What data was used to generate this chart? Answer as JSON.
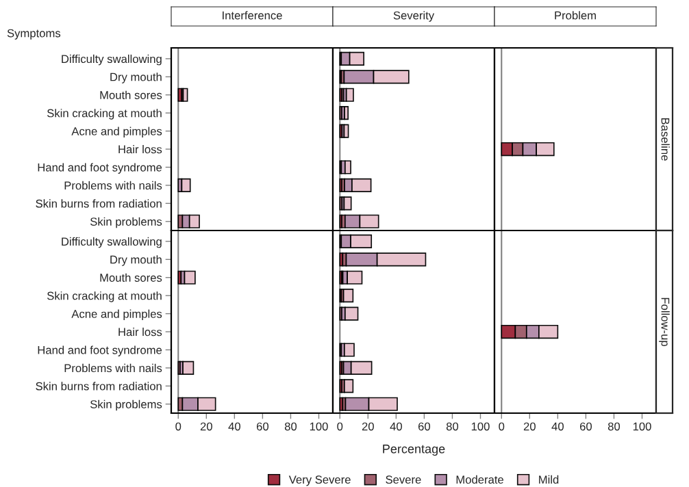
{
  "chart_data": [
    {
      "type": "bar",
      "orientation": "horizontal",
      "stacked": true,
      "title": "Interference",
      "ylabel": "Symptoms",
      "categories": [
        "Difficulty swallowing",
        "Dry mouth",
        "Mouth sores",
        "Skin cracking at mouth",
        "Acne and pimples",
        "Hair loss",
        "Hand and foot syndrome",
        "Problems with nails",
        "Skin burns from radiation",
        "Skin problems"
      ],
      "xlim": [
        -5,
        110
      ],
      "xticks": [
        0,
        20,
        40,
        60,
        80,
        100
      ],
      "tick_labels": "y",
      "ref_lines": [
        {
          "axis": "x",
          "value": 0,
          "color": "#808080"
        }
      ],
      "series": [
        {
          "color": "#9b2335",
          "values": [
            null,
            null,
            2.5,
            null,
            null,
            null,
            null,
            null,
            null,
            null
          ]
        },
        {
          "color": "#9c5a68",
          "values": [
            null,
            null,
            1,
            null,
            null,
            null,
            null,
            null,
            null,
            3
          ]
        },
        {
          "color": "#b08aa8",
          "values": [
            null,
            null,
            null,
            null,
            null,
            null,
            null,
            2.5,
            null,
            5
          ]
        },
        {
          "color": "#e6bfcb",
          "values": [
            null,
            null,
            3,
            null,
            null,
            null,
            null,
            6,
            null,
            7
          ]
        }
      ]
    },
    {
      "type": "bar",
      "orientation": "horizontal",
      "stacked": true,
      "title": "Severity",
      "categories": [
        null,
        null,
        null,
        null,
        null,
        null,
        null,
        null,
        null,
        null
      ],
      "xlim": [
        -5,
        110
      ],
      "xticks": [
        0,
        20,
        40,
        60,
        80,
        100
      ],
      "tick_labels": false,
      "ref_lines": [
        {
          "axis": "x",
          "value": 0,
          "color": "#808080"
        }
      ],
      "series": [
        {
          "color": "#9b2335",
          "values": [
            null,
            1,
            1.3,
            null,
            1.5,
            null,
            null,
            1.3,
            null,
            1.3
          ]
        },
        {
          "color": "#9c5a68",
          "values": [
            1,
            2,
            1.3,
            1.3,
            null,
            null,
            1,
            2,
            1.5,
            2.4
          ]
        },
        {
          "color": "#b08aa8",
          "values": [
            6,
            21,
            2,
            2,
            1.5,
            null,
            2.7,
            5.3,
            1.5,
            10.5
          ]
        },
        {
          "color": "#e6bfcb",
          "values": [
            10,
            25,
            5,
            2.5,
            3,
            null,
            4,
            13.5,
            5,
            13.3
          ]
        }
      ]
    },
    {
      "type": "bar",
      "orientation": "horizontal",
      "stacked": true,
      "title": "Problem",
      "y2label": "Baseline",
      "categories": [
        null,
        null,
        null,
        null,
        null,
        null,
        null,
        null,
        null,
        null
      ],
      "xlim": [
        -5,
        110
      ],
      "xticks": [
        0,
        20,
        40,
        60,
        80,
        100
      ],
      "tick_labels": false,
      "ref_lines": [
        {
          "axis": "x",
          "value": 0,
          "color": "#808080"
        }
      ],
      "series": [
        {
          "color": "#9b2335",
          "values": [
            null,
            null,
            null,
            null,
            null,
            7.7,
            null,
            null,
            null,
            null
          ]
        },
        {
          "color": "#9c5a68",
          "values": [
            null,
            null,
            null,
            null,
            null,
            7.5,
            null,
            null,
            null,
            null
          ]
        },
        {
          "color": "#b08aa8",
          "values": [
            null,
            null,
            null,
            null,
            null,
            9.6,
            null,
            null,
            null,
            null
          ]
        },
        {
          "color": "#e6bfcb",
          "values": [
            null,
            null,
            null,
            null,
            null,
            12.5,
            null,
            null,
            null,
            null
          ]
        }
      ]
    },
    {
      "type": "bar",
      "orientation": "horizontal",
      "stacked": true,
      "categories": [
        "Difficulty swallowing",
        "Dry mouth",
        "Mouth sores",
        "Skin cracking at mouth",
        "Acne and pimples",
        "Hair loss",
        "Hand and foot syndrome",
        "Problems with nails",
        "Skin burns from radiation",
        "Skin problems"
      ],
      "xlim": [
        -5,
        110
      ],
      "xticks": [
        0,
        20,
        40,
        60,
        80,
        100
      ],
      "ref_lines": [
        {
          "axis": "x",
          "value": 0,
          "color": "#808080"
        }
      ],
      "series": [
        {
          "color": "#9b2335",
          "values": [
            null,
            null,
            2,
            null,
            null,
            null,
            null,
            null,
            null,
            null
          ]
        },
        {
          "color": "#9c5a68",
          "values": [
            null,
            null,
            null,
            null,
            null,
            null,
            null,
            1.3,
            null,
            3
          ]
        },
        {
          "color": "#b08aa8",
          "values": [
            null,
            null,
            2.5,
            null,
            null,
            null,
            null,
            2,
            null,
            11
          ]
        },
        {
          "color": "#e6bfcb",
          "values": [
            null,
            null,
            7.5,
            null,
            null,
            null,
            null,
            7.5,
            null,
            12.5
          ]
        }
      ]
    },
    {
      "type": "bar",
      "orientation": "horizontal",
      "stacked": true,
      "xlabel": "Percentage",
      "legend": "bottom",
      "categories": [
        null,
        null,
        null,
        null,
        null,
        null,
        null,
        null,
        null,
        null
      ],
      "xlim": [
        -5,
        110
      ],
      "xticks": [
        0,
        20,
        40,
        60,
        80,
        100
      ],
      "tick_labels": "x",
      "ref_lines": [
        {
          "axis": "x",
          "value": 0,
          "color": "#808080"
        }
      ],
      "series": [
        {
          "name": "Very Severe",
          "color": "#9b2335",
          "values": [
            null,
            2,
            1.3,
            1,
            null,
            null,
            null,
            1.3,
            1.3,
            2
          ]
        },
        {
          "name": "Severe",
          "color": "#9c5a68",
          "values": [
            1,
            2.5,
            0.8,
            1.6,
            1.3,
            null,
            1,
            1.3,
            1.9,
            2
          ]
        },
        {
          "name": "Moderate",
          "color": "#b08aa8",
          "values": [
            6.7,
            22,
            3.2,
            null,
            2.4,
            null,
            2.2,
            5.4,
            null,
            16.6
          ]
        },
        {
          "name": "Mild",
          "color": "#e6bfcb",
          "values": [
            14.7,
            34.5,
            10.4,
            6.7,
            9.1,
            null,
            6.9,
            14.6,
            6.1,
            20.2
          ]
        }
      ]
    },
    {
      "type": "bar",
      "orientation": "horizontal",
      "stacked": true,
      "y2label": "Follow-up",
      "categories": [
        null,
        null,
        null,
        null,
        null,
        null,
        null,
        null,
        null,
        null
      ],
      "xlim": [
        -5,
        110
      ],
      "xticks": [
        0,
        20,
        40,
        60,
        80,
        100
      ],
      "tick_labels": "x",
      "ref_lines": [
        {
          "axis": "x",
          "value": 0,
          "color": "#808080"
        }
      ],
      "series": [
        {
          "color": "#9b2335",
          "values": [
            null,
            null,
            null,
            null,
            null,
            9.8,
            null,
            null,
            null,
            null
          ]
        },
        {
          "color": "#9c5a68",
          "values": [
            null,
            null,
            null,
            null,
            null,
            8,
            null,
            null,
            null,
            null
          ]
        },
        {
          "color": "#b08aa8",
          "values": [
            null,
            null,
            null,
            null,
            null,
            8.8,
            null,
            null,
            null,
            null
          ]
        },
        {
          "color": "#e6bfcb",
          "values": [
            null,
            null,
            null,
            null,
            null,
            13.4,
            null,
            null,
            null,
            null
          ]
        }
      ]
    }
  ]
}
